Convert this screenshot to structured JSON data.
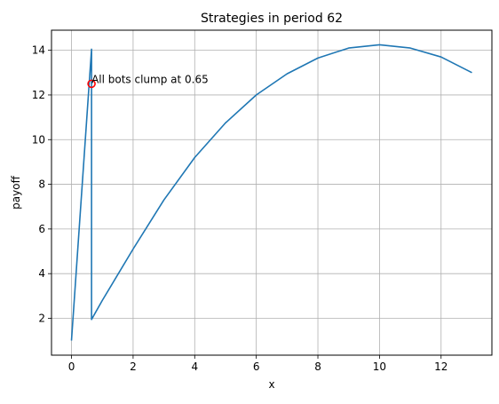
{
  "chart_data": {
    "type": "line",
    "title": "Strategies in period 62",
    "xlabel": "x",
    "ylabel": "payoff",
    "xlim": [
      -0.65,
      13.65
    ],
    "ylim": [
      0.35,
      14.9
    ],
    "xticks": [
      0,
      2,
      4,
      6,
      8,
      10,
      12
    ],
    "yticks": [
      2,
      4,
      6,
      8,
      10,
      12,
      14
    ],
    "grid": true,
    "line_color": "#1f77b4",
    "series": [
      {
        "x": [
          0,
          0.65,
          0.65,
          1,
          2,
          3,
          4,
          5,
          6,
          7,
          8,
          9,
          10,
          11,
          12,
          13
        ],
        "y": [
          1.0,
          14.05,
          1.95,
          2.8,
          5.1,
          7.3,
          9.2,
          10.75,
          12.0,
          12.95,
          13.65,
          14.1,
          14.25,
          14.1,
          13.7,
          13.0
        ]
      }
    ],
    "marker": {
      "x": 0.65,
      "y": 12.5,
      "color": "#ff0000",
      "style": "open-circle"
    },
    "annotations": [
      {
        "text": "All bots clump at 0.65",
        "x": 0.65,
        "y": 12.5
      }
    ]
  }
}
